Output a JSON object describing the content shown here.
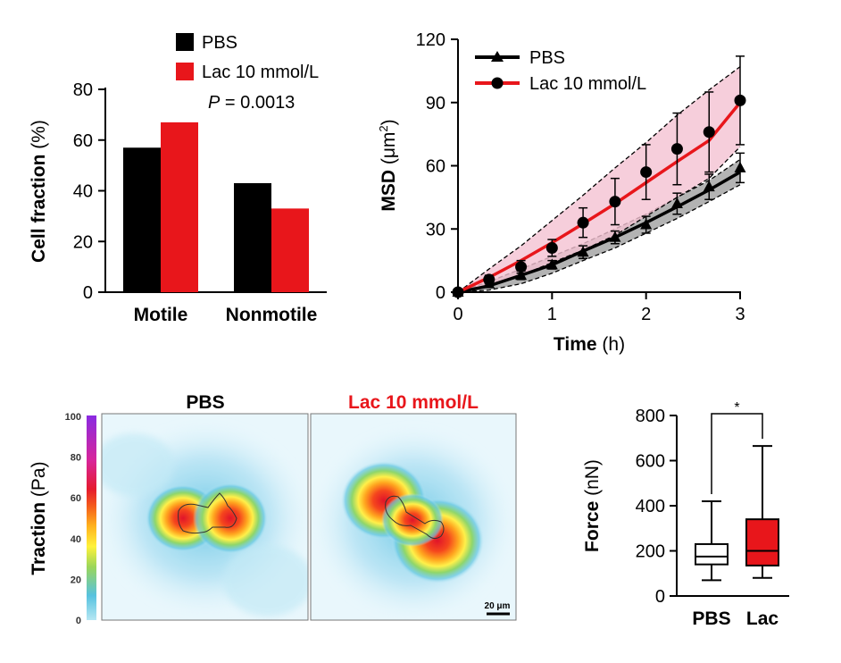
{
  "colors": {
    "pbs": "#000000",
    "lac": "#e8161b",
    "lac_band": "#f4c2d2",
    "pbs_band": "#a6a6a6",
    "lac_title": "#e8161b"
  },
  "chart_data": [
    {
      "id": "bar",
      "type": "bar",
      "categories": [
        "Motile",
        "Nonmotile"
      ],
      "series": [
        {
          "name": "PBS",
          "values": [
            57,
            43
          ]
        },
        {
          "name": "Lac 10 mmol/L",
          "values": [
            67,
            33
          ]
        }
      ],
      "ylabel_main": "Cell fraction",
      "ylabel_unit": "(%)",
      "yticks": [
        0,
        20,
        40,
        60,
        80
      ],
      "ylim": [
        0,
        80
      ],
      "annotation_italic": "P",
      "annotation_rest": " = 0.0013",
      "legend": "top"
    },
    {
      "id": "msd",
      "type": "line",
      "xlabel_main": "Time",
      "xlabel_unit": "(h)",
      "ylabel_main": "MSD",
      "ylabel_unit": "(μm",
      "ylabel_sup": "2",
      "ylabel_close": ")",
      "xticks": [
        0,
        1,
        2,
        3
      ],
      "yticks": [
        0,
        30,
        60,
        90,
        120
      ],
      "xlim": [
        0,
        3
      ],
      "ylim": [
        0,
        120
      ],
      "legend": "top-left",
      "series": [
        {
          "name": "PBS",
          "marker": "triangle",
          "x": [
            0,
            0.33,
            0.67,
            1.0,
            1.33,
            1.67,
            2.0,
            2.33,
            2.67,
            3.0
          ],
          "y": [
            0,
            4,
            8,
            13,
            19,
            26,
            32,
            42,
            50,
            59
          ],
          "err": [
            0,
            1,
            2,
            2,
            3,
            3,
            4,
            5,
            6,
            7
          ],
          "fit": [
            0,
            3,
            8,
            13,
            19.5,
            26,
            33,
            40.5,
            48.5,
            57
          ],
          "band_lo": [
            0,
            1,
            4,
            9,
            15,
            21,
            28,
            35,
            43,
            51
          ],
          "band_hi": [
            0,
            5,
            11,
            17,
            23,
            30,
            37,
            45,
            53,
            63
          ]
        },
        {
          "name": "Lac 10 mmol/L",
          "marker": "circle",
          "x": [
            0,
            0.33,
            0.67,
            1.0,
            1.33,
            1.67,
            2.0,
            2.33,
            2.67,
            3.0
          ],
          "y": [
            0,
            6,
            12,
            21,
            33,
            43,
            57,
            68,
            76,
            91
          ],
          "err": [
            0,
            2,
            3,
            4,
            7,
            11,
            13,
            17,
            19,
            21
          ],
          "fit": [
            0,
            7,
            15,
            23.5,
            32.5,
            42,
            52,
            62,
            72,
            90
          ],
          "band_lo": [
            0,
            3,
            8,
            14,
            20,
            27,
            36,
            45,
            54,
            69
          ],
          "band_hi": [
            0,
            11,
            22,
            34,
            46,
            59,
            71,
            84,
            96,
            107
          ]
        }
      ]
    },
    {
      "id": "box",
      "type": "box",
      "categories": [
        "PBS",
        "Lac"
      ],
      "ylabel_main": "Force",
      "ylabel_unit": "(nN)",
      "yticks": [
        0,
        200,
        400,
        600,
        800
      ],
      "ylim": [
        0,
        800
      ],
      "boxes": [
        {
          "name": "PBS",
          "min": 70,
          "q1": 140,
          "median": 175,
          "q3": 230,
          "max": 420
        },
        {
          "name": "Lac",
          "min": 80,
          "q1": 135,
          "median": 200,
          "q3": 340,
          "max": 665
        }
      ],
      "significance": "*"
    }
  ],
  "traction": {
    "title_pbs": "PBS",
    "title_lac": "Lac 10 mmol/L",
    "colorbar_label_main": "Traction",
    "colorbar_label_unit": "(Pa)",
    "colorbar_ticks": [
      0,
      20,
      40,
      60,
      80,
      100
    ],
    "scale_bar": "20 μm"
  }
}
